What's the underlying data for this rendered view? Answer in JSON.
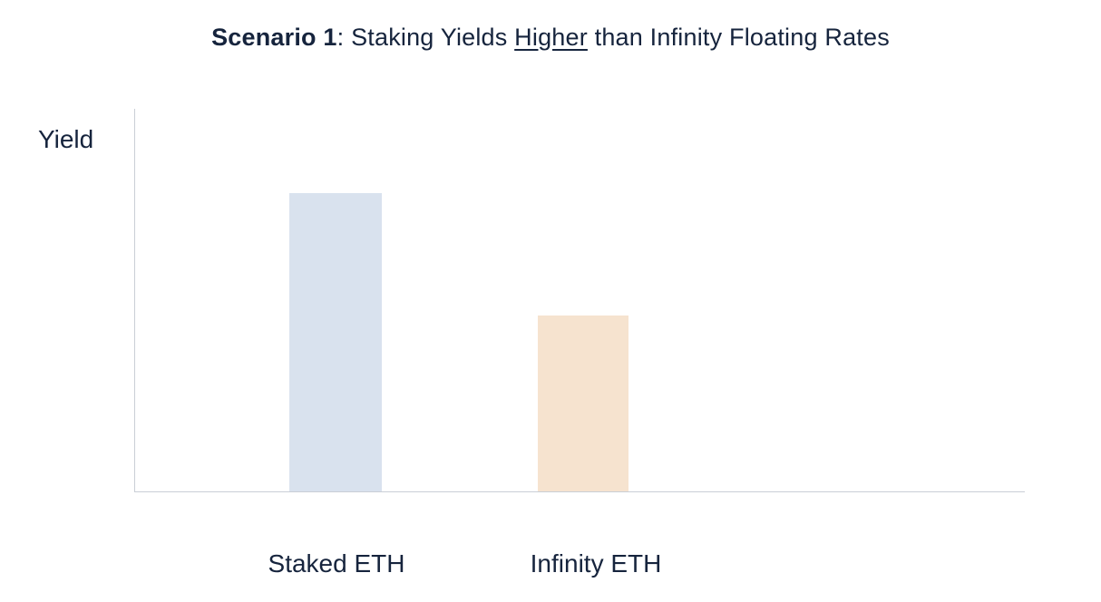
{
  "title": {
    "bold": "Scenario 1",
    "separator": ": ",
    "pre_underline": "Staking Yields ",
    "underlined": "Higher",
    "post_underline": " than Infinity Floating Rates"
  },
  "y_axis_label": "Yield",
  "chart_data": {
    "type": "bar",
    "title": "Scenario 1: Staking Yields Higher than Infinity Floating Rates",
    "categories": [
      "Staked ETH",
      "Infinity ETH"
    ],
    "values": [
      78,
      46
    ],
    "xlabel": "",
    "ylabel": "Yield",
    "ylim": [
      0,
      100
    ],
    "grid": false,
    "y_tick_labels": [],
    "legend": "none",
    "bar_colors": [
      "#d9e2ee",
      "#f6e3cf"
    ]
  },
  "colors": {
    "text": "#16243d",
    "axis": "#c9ced6",
    "bar_staked_eth": "#d9e2ee",
    "bar_infinity_eth": "#f6e3cf",
    "background": "#ffffff"
  }
}
